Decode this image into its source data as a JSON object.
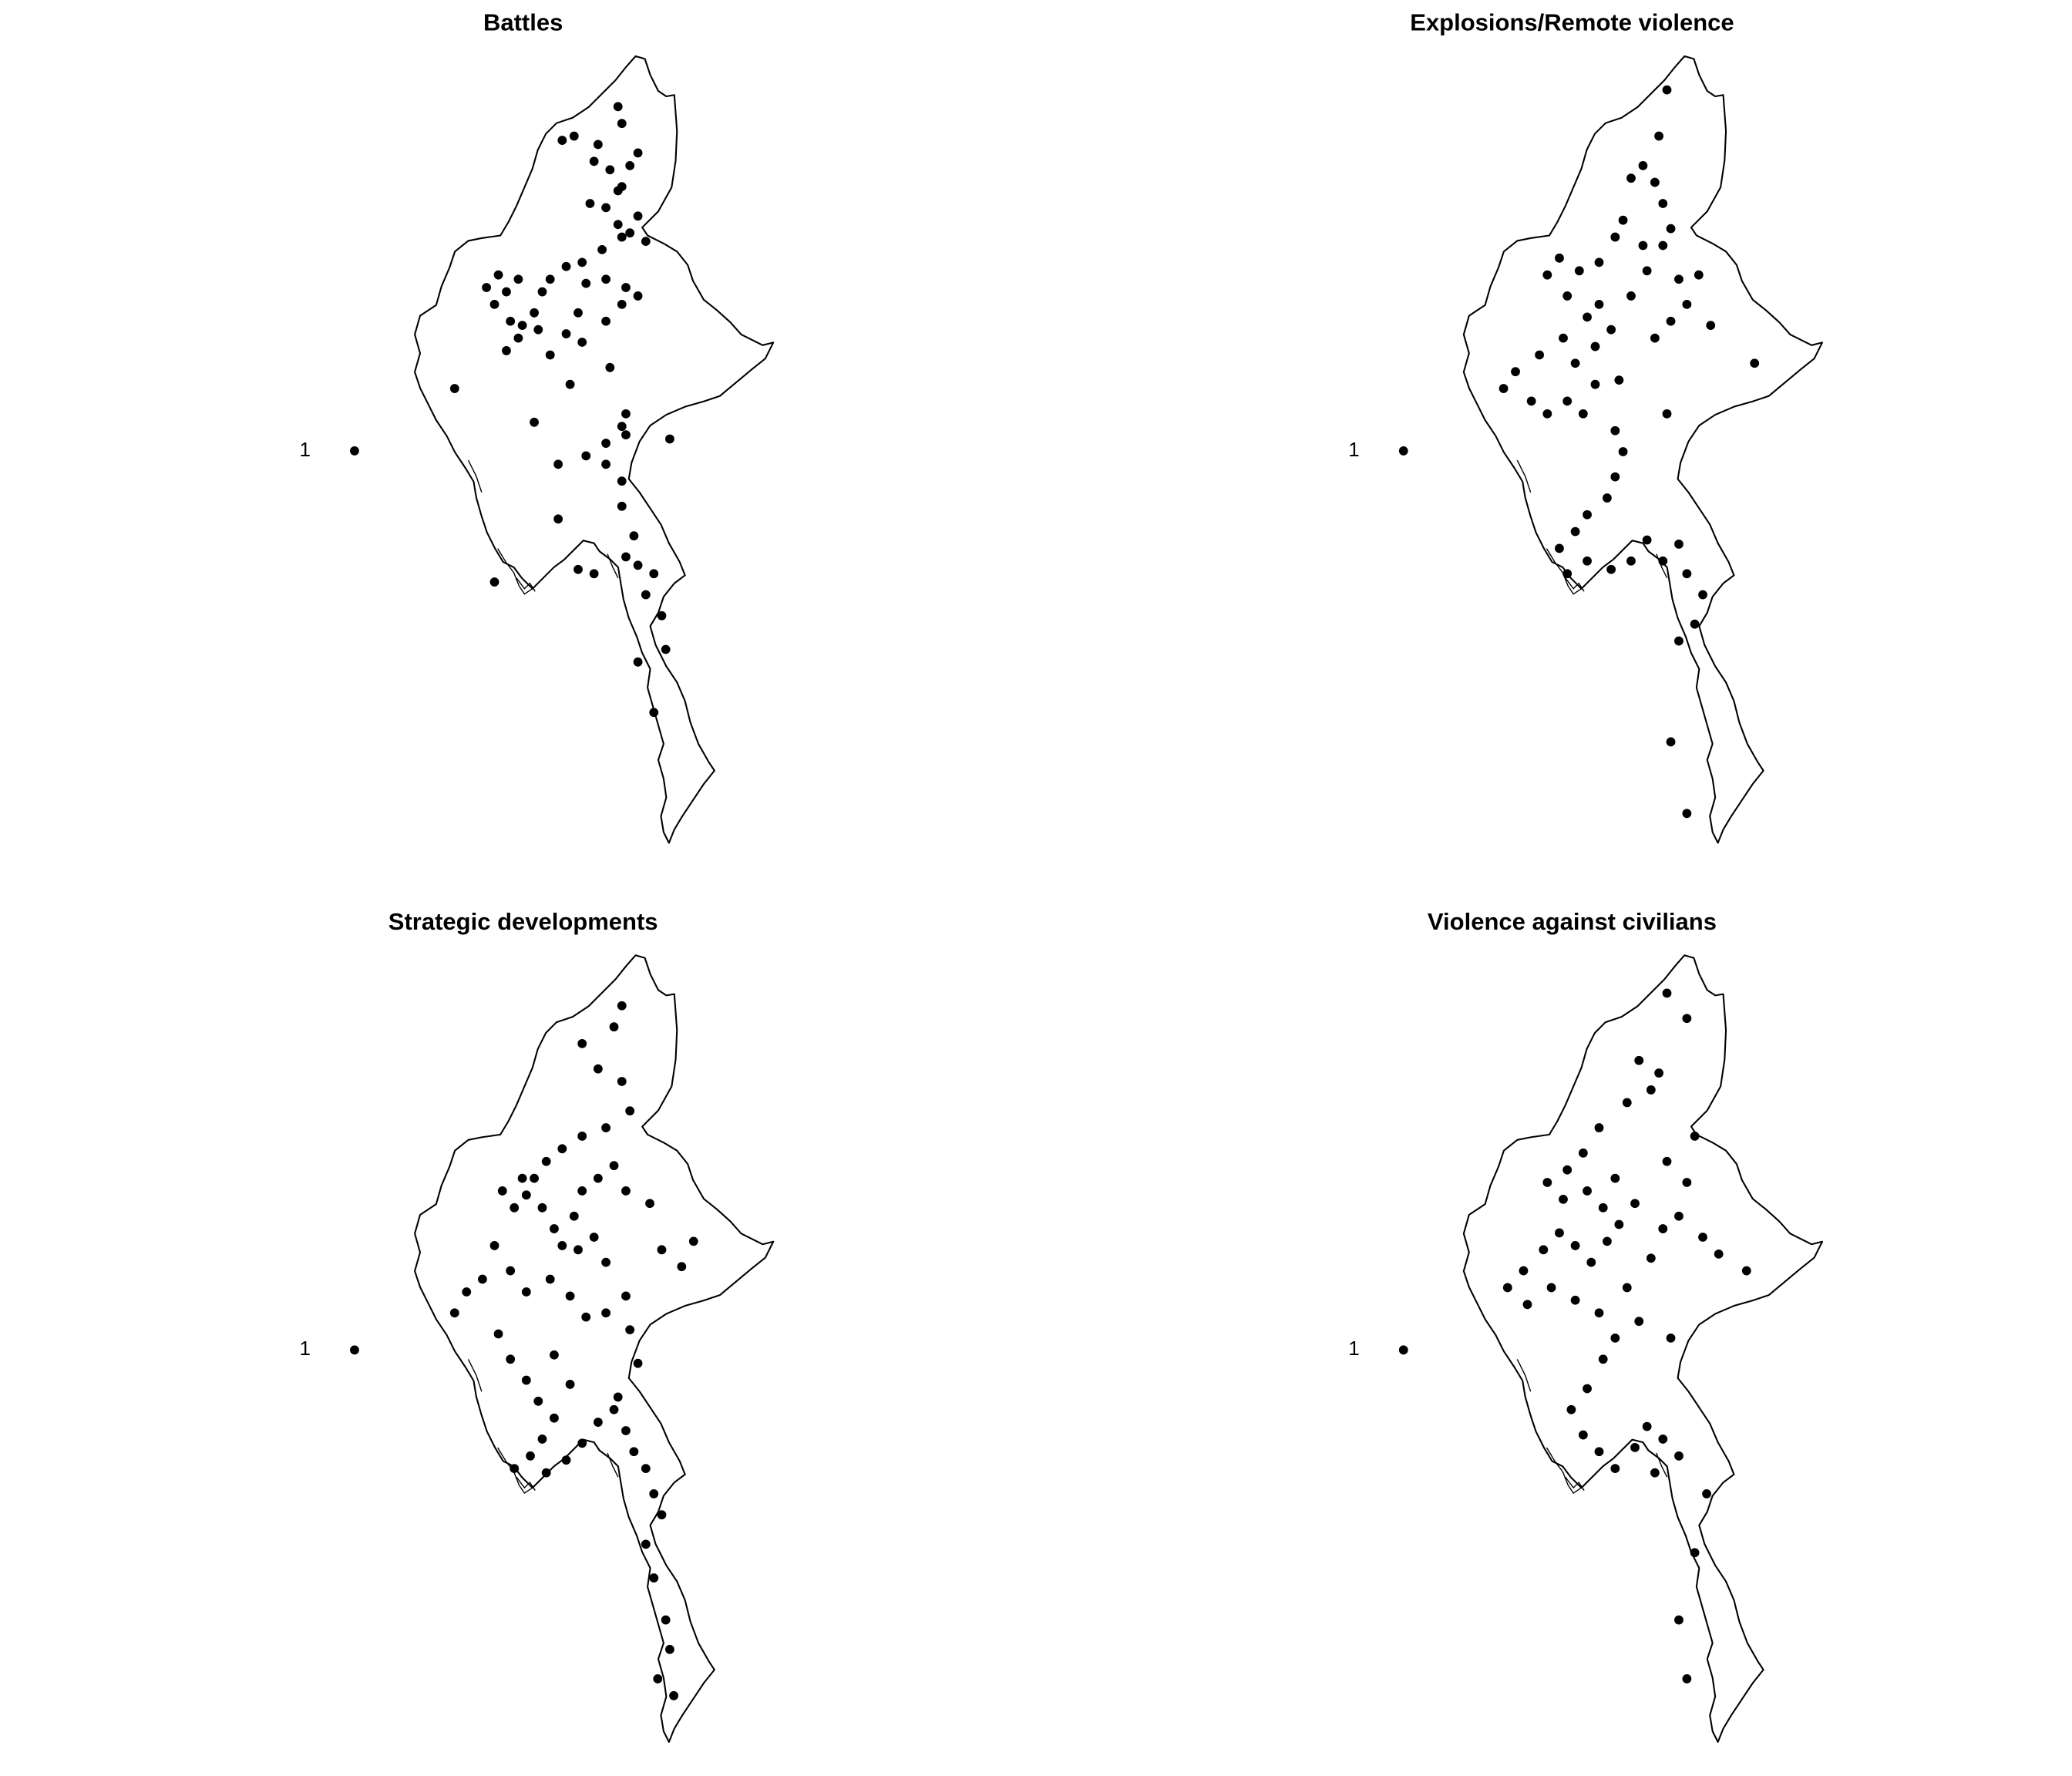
{
  "figure": {
    "panels": [
      {
        "title": "Battles",
        "legend_label": "1",
        "event_locations": [
          [
            97.3,
            25.3
          ],
          [
            97.4,
            26.9
          ],
          [
            97.3,
            27.3
          ],
          [
            96.8,
            26.4
          ],
          [
            95.9,
            26.5
          ],
          [
            96.2,
            26.6
          ],
          [
            96.7,
            26.0
          ],
          [
            97.1,
            25.8
          ],
          [
            97.4,
            25.4
          ],
          [
            96.6,
            25.0
          ],
          [
            97.0,
            24.9
          ],
          [
            97.3,
            24.5
          ],
          [
            97.6,
            24.3
          ],
          [
            98.0,
            24.1
          ],
          [
            97.8,
            24.7
          ],
          [
            97.4,
            24.2
          ],
          [
            96.9,
            23.9
          ],
          [
            96.4,
            23.6
          ],
          [
            96.0,
            23.5
          ],
          [
            95.6,
            23.2
          ],
          [
            95.4,
            22.9
          ],
          [
            95.2,
            22.4
          ],
          [
            94.9,
            22.1
          ],
          [
            94.6,
            22.2
          ],
          [
            94.5,
            22.9
          ],
          [
            94.8,
            23.2
          ],
          [
            94.3,
            23.3
          ],
          [
            94.0,
            23.0
          ],
          [
            94.2,
            22.6
          ],
          [
            94.5,
            21.5
          ],
          [
            94.8,
            21.8
          ],
          [
            95.3,
            22.0
          ],
          [
            95.6,
            21.4
          ],
          [
            96.0,
            21.9
          ],
          [
            96.3,
            22.4
          ],
          [
            96.5,
            23.1
          ],
          [
            97.0,
            23.2
          ],
          [
            97.5,
            23.0
          ],
          [
            97.8,
            22.8
          ],
          [
            97.4,
            22.6
          ],
          [
            97.0,
            22.2
          ],
          [
            96.4,
            21.7
          ],
          [
            96.1,
            20.7
          ],
          [
            97.1,
            21.1
          ],
          [
            97.5,
            20.0
          ],
          [
            97.4,
            19.7
          ],
          [
            97.5,
            19.5
          ],
          [
            97.0,
            19.3
          ],
          [
            97.0,
            18.8
          ],
          [
            96.5,
            19.0
          ],
          [
            97.4,
            18.4
          ],
          [
            97.4,
            17.8
          ],
          [
            97.7,
            17.1
          ],
          [
            97.5,
            16.6
          ],
          [
            97.8,
            16.4
          ],
          [
            98.2,
            16.2
          ],
          [
            98.0,
            15.7
          ],
          [
            98.4,
            15.2
          ],
          [
            98.5,
            14.4
          ],
          [
            97.8,
            14.1
          ],
          [
            98.2,
            12.9
          ],
          [
            96.3,
            16.3
          ],
          [
            95.8,
            17.5
          ],
          [
            96.7,
            16.2
          ],
          [
            94.2,
            16.0
          ],
          [
            95.8,
            18.8
          ],
          [
            95.2,
            19.8
          ],
          [
            93.2,
            20.6
          ],
          [
            98.6,
            19.4
          ],
          [
            97.8,
            26.2
          ],
          [
            97.6,
            25.9
          ]
        ]
      },
      {
        "title": "Explosions/Remote violence",
        "legend_label": "1",
        "event_locations": [
          [
            97.3,
            27.7
          ],
          [
            97.1,
            26.6
          ],
          [
            96.7,
            25.9
          ],
          [
            96.4,
            25.6
          ],
          [
            97.0,
            25.5
          ],
          [
            97.2,
            25.0
          ],
          [
            97.4,
            24.4
          ],
          [
            97.2,
            24.0
          ],
          [
            96.7,
            24.0
          ],
          [
            96.2,
            24.6
          ],
          [
            96.0,
            24.2
          ],
          [
            95.6,
            23.6
          ],
          [
            95.1,
            23.4
          ],
          [
            94.6,
            23.7
          ],
          [
            94.3,
            23.3
          ],
          [
            94.8,
            22.8
          ],
          [
            95.3,
            22.3
          ],
          [
            95.6,
            22.6
          ],
          [
            95.9,
            22.0
          ],
          [
            95.5,
            21.6
          ],
          [
            95.0,
            21.2
          ],
          [
            94.7,
            21.8
          ],
          [
            94.1,
            21.4
          ],
          [
            93.5,
            21.0
          ],
          [
            93.2,
            20.6
          ],
          [
            93.9,
            20.3
          ],
          [
            94.3,
            20.0
          ],
          [
            94.8,
            20.3
          ],
          [
            95.2,
            20.0
          ],
          [
            95.5,
            20.7
          ],
          [
            96.1,
            20.8
          ],
          [
            96.0,
            19.6
          ],
          [
            96.2,
            19.1
          ],
          [
            96.0,
            18.5
          ],
          [
            95.8,
            18.0
          ],
          [
            95.3,
            17.6
          ],
          [
            95.0,
            17.2
          ],
          [
            94.6,
            16.8
          ],
          [
            94.8,
            16.2
          ],
          [
            95.3,
            16.5
          ],
          [
            95.9,
            16.3
          ],
          [
            96.4,
            16.5
          ],
          [
            96.8,
            17.0
          ],
          [
            97.2,
            16.5
          ],
          [
            97.6,
            16.9
          ],
          [
            97.8,
            16.2
          ],
          [
            98.2,
            15.7
          ],
          [
            98.0,
            15.0
          ],
          [
            97.6,
            14.6
          ],
          [
            97.3,
            20.0
          ],
          [
            97.0,
            21.8
          ],
          [
            97.4,
            22.2
          ],
          [
            97.8,
            22.6
          ],
          [
            98.4,
            22.1
          ],
          [
            99.5,
            21.2
          ],
          [
            97.6,
            23.2
          ],
          [
            98.1,
            23.3
          ],
          [
            97.4,
            12.2
          ],
          [
            97.8,
            10.5
          ],
          [
            96.4,
            22.8
          ],
          [
            96.8,
            23.4
          ]
        ]
      },
      {
        "title": "Strategic developments",
        "legend_label": "1",
        "event_locations": [
          [
            97.4,
            27.3
          ],
          [
            97.2,
            26.8
          ],
          [
            96.4,
            26.4
          ],
          [
            96.8,
            25.8
          ],
          [
            97.4,
            25.5
          ],
          [
            97.6,
            24.8
          ],
          [
            97.0,
            24.4
          ],
          [
            96.4,
            24.2
          ],
          [
            95.9,
            23.9
          ],
          [
            95.5,
            23.6
          ],
          [
            95.2,
            23.2
          ],
          [
            95.0,
            22.8
          ],
          [
            94.7,
            22.5
          ],
          [
            94.4,
            22.9
          ],
          [
            94.9,
            23.2
          ],
          [
            95.4,
            22.5
          ],
          [
            95.7,
            22.0
          ],
          [
            95.9,
            21.6
          ],
          [
            96.2,
            22.3
          ],
          [
            96.4,
            22.9
          ],
          [
            96.8,
            23.2
          ],
          [
            97.2,
            23.5
          ],
          [
            97.5,
            22.9
          ],
          [
            98.1,
            22.6
          ],
          [
            98.4,
            21.5
          ],
          [
            98.9,
            21.1
          ],
          [
            99.2,
            21.7
          ],
          [
            97.0,
            21.2
          ],
          [
            97.5,
            20.4
          ],
          [
            97.0,
            20.0
          ],
          [
            96.5,
            19.9
          ],
          [
            96.1,
            20.4
          ],
          [
            95.6,
            20.8
          ],
          [
            95.0,
            20.5
          ],
          [
            94.6,
            21.0
          ],
          [
            94.2,
            21.6
          ],
          [
            93.9,
            20.8
          ],
          [
            93.5,
            20.5
          ],
          [
            93.2,
            20.0
          ],
          [
            94.3,
            19.5
          ],
          [
            94.6,
            18.9
          ],
          [
            95.0,
            18.4
          ],
          [
            95.3,
            17.9
          ],
          [
            95.7,
            17.5
          ],
          [
            95.4,
            17.0
          ],
          [
            95.1,
            16.6
          ],
          [
            94.7,
            16.3
          ],
          [
            95.5,
            16.2
          ],
          [
            96.0,
            16.5
          ],
          [
            96.4,
            16.9
          ],
          [
            96.8,
            17.4
          ],
          [
            97.2,
            17.7
          ],
          [
            97.5,
            17.2
          ],
          [
            97.7,
            16.7
          ],
          [
            98.0,
            16.3
          ],
          [
            98.2,
            15.7
          ],
          [
            98.4,
            15.2
          ],
          [
            98.0,
            14.5
          ],
          [
            98.2,
            13.7
          ],
          [
            98.5,
            12.7
          ],
          [
            98.6,
            12.0
          ],
          [
            98.3,
            11.3
          ],
          [
            98.7,
            10.9
          ],
          [
            97.8,
            18.8
          ],
          [
            97.6,
            19.6
          ],
          [
            97.3,
            18.0
          ],
          [
            96.1,
            18.3
          ],
          [
            95.7,
            19.0
          ],
          [
            96.7,
            21.8
          ],
          [
            96.3,
            21.5
          ]
        ]
      },
      {
        "title": "Violence against civilians",
        "legend_label": "1",
        "event_locations": [
          [
            97.3,
            27.6
          ],
          [
            97.8,
            27.0
          ],
          [
            96.6,
            26.0
          ],
          [
            97.1,
            25.7
          ],
          [
            96.9,
            25.3
          ],
          [
            96.3,
            25.0
          ],
          [
            95.6,
            24.4
          ],
          [
            95.2,
            23.8
          ],
          [
            94.8,
            23.4
          ],
          [
            94.3,
            23.1
          ],
          [
            94.7,
            22.7
          ],
          [
            95.3,
            22.9
          ],
          [
            95.7,
            22.5
          ],
          [
            96.1,
            22.1
          ],
          [
            95.8,
            21.7
          ],
          [
            95.4,
            21.2
          ],
          [
            95.0,
            21.6
          ],
          [
            94.6,
            21.9
          ],
          [
            94.2,
            21.5
          ],
          [
            93.7,
            21.0
          ],
          [
            93.3,
            20.6
          ],
          [
            93.8,
            20.2
          ],
          [
            94.4,
            20.6
          ],
          [
            95.0,
            20.3
          ],
          [
            95.6,
            20.0
          ],
          [
            96.0,
            19.4
          ],
          [
            95.7,
            18.9
          ],
          [
            95.3,
            18.2
          ],
          [
            94.9,
            17.7
          ],
          [
            95.2,
            17.1
          ],
          [
            95.6,
            16.7
          ],
          [
            96.0,
            16.3
          ],
          [
            96.5,
            16.8
          ],
          [
            96.8,
            17.3
          ],
          [
            97.2,
            17.0
          ],
          [
            97.6,
            16.6
          ],
          [
            97.0,
            16.2
          ],
          [
            97.4,
            19.4
          ],
          [
            96.6,
            19.8
          ],
          [
            96.3,
            20.6
          ],
          [
            96.9,
            21.3
          ],
          [
            97.2,
            22.0
          ],
          [
            97.6,
            22.3
          ],
          [
            98.2,
            21.8
          ],
          [
            98.6,
            21.4
          ],
          [
            99.3,
            21.0
          ],
          [
            97.8,
            23.1
          ],
          [
            97.3,
            23.6
          ],
          [
            98.0,
            24.2
          ],
          [
            98.3,
            15.7
          ],
          [
            98.0,
            14.3
          ],
          [
            97.6,
            12.7
          ],
          [
            97.8,
            11.3
          ],
          [
            96.5,
            22.6
          ],
          [
            96.0,
            23.2
          ]
        ]
      }
    ]
  }
}
